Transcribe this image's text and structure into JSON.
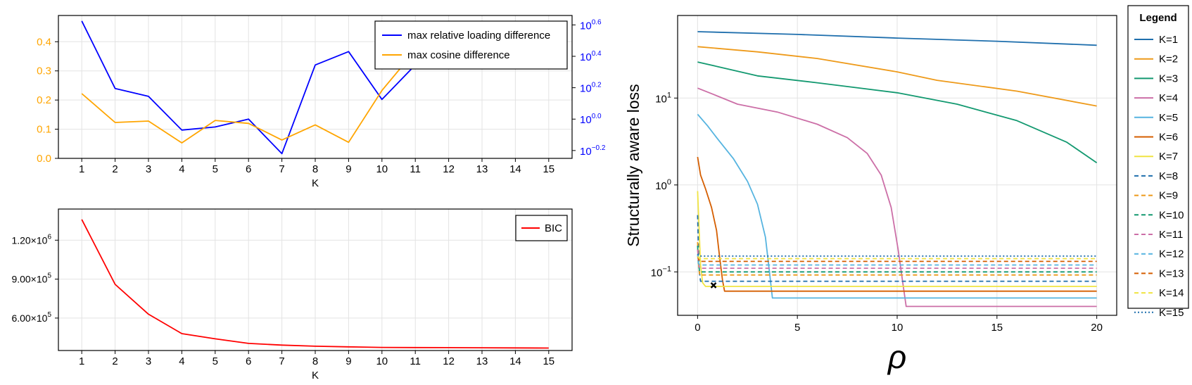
{
  "chart_data": [
    {
      "type": "line",
      "xlabel": "K",
      "x": [
        1,
        2,
        3,
        4,
        5,
        6,
        7,
        8,
        9,
        10,
        11,
        12,
        13,
        14,
        15
      ],
      "xlim": [
        0.3,
        15.7
      ],
      "left_axis": {
        "ylim": [
          0,
          0.49
        ],
        "ticks": [
          0.0,
          0.1,
          0.2,
          0.3,
          0.4
        ],
        "tick_labels": [
          "0.0",
          "0.1",
          "0.2",
          "0.3",
          "0.4"
        ],
        "color": "#ffa500"
      },
      "right_axis": {
        "scale": "log10",
        "ylim_exponent": [
          -0.25,
          0.66
        ],
        "ticks_exponent": [
          -0.2,
          0.0,
          0.2,
          0.4,
          0.6
        ],
        "tick_base": "10",
        "tick_exponents": [
          "−0.2",
          "0.0",
          "0.2",
          "0.4",
          "0.6"
        ],
        "color": "#0000ff"
      },
      "grid": true,
      "legend": {
        "placement": "top-right",
        "entries": [
          "max relative loading difference",
          "max cosine difference"
        ]
      },
      "series": [
        {
          "name": "max relative loading difference",
          "axis": "right",
          "color": "#0000ff",
          "log10_values": [
            0.625,
            0.195,
            0.145,
            -0.07,
            -0.05,
            0.0,
            -0.22,
            0.345,
            0.43,
            0.125,
            0.345,
            null,
            null,
            null,
            null
          ]
        },
        {
          "name": "max cosine difference",
          "axis": "left",
          "color": "#ffa500",
          "values": [
            0.222,
            0.123,
            0.128,
            0.053,
            0.13,
            0.12,
            0.063,
            0.115,
            0.055,
            0.233,
            0.37,
            null,
            null,
            null,
            null
          ]
        }
      ]
    },
    {
      "type": "line",
      "xlabel": "K",
      "x": [
        1,
        2,
        3,
        4,
        5,
        6,
        7,
        8,
        9,
        10,
        11,
        12,
        13,
        14,
        15
      ],
      "xlim": [
        0.3,
        15.7
      ],
      "ylim": [
        350000,
        1440000
      ],
      "y_ticks": [
        600000,
        900000,
        1200000
      ],
      "y_tick_mantissas": [
        "6.00",
        "9.00",
        "1.20"
      ],
      "y_tick_exponent": "5",
      "y_tick_exponent_big": "6",
      "grid": true,
      "legend": {
        "placement": "top-right",
        "entries": [
          "BIC"
        ]
      },
      "series": [
        {
          "name": "BIC",
          "color": "#ff0000",
          "values": [
            1360000,
            860000,
            630000,
            480000,
            440000,
            405000,
            392000,
            383000,
            378000,
            374000,
            373000,
            372000,
            371000,
            370000,
            369000
          ]
        }
      ]
    },
    {
      "type": "line",
      "xlabel": "ρ",
      "ylabel": "Structurally aware loss",
      "y_scale": "log10",
      "xlim": [
        -1.0,
        21.0
      ],
      "xticks": [
        0,
        5,
        10,
        15,
        20
      ],
      "log10_ylim": [
        -1.5,
        1.95
      ],
      "y_ticks_exponent": [
        -1,
        0,
        1
      ],
      "y_tick_base": "10",
      "y_tick_exponents": [
        "−1",
        "0",
        "1"
      ],
      "grid": true,
      "legend": {
        "title": "Legend",
        "placement": "right-outside"
      },
      "series": [
        {
          "name": "K=1",
          "color": "#1f6fad",
          "dash": "solid",
          "points": [
            [
              0,
              58
            ],
            [
              5,
              54
            ],
            [
              10,
              49
            ],
            [
              15,
              45
            ],
            [
              20,
              40.5
            ]
          ]
        },
        {
          "name": "K=2",
          "color": "#ee9a1a",
          "dash": "solid",
          "points": [
            [
              0,
              39
            ],
            [
              3,
              34
            ],
            [
              6,
              28.5
            ],
            [
              10,
              20
            ],
            [
              12,
              16
            ],
            [
              16,
              12
            ],
            [
              20,
              8.1
            ]
          ]
        },
        {
          "name": "K=3",
          "color": "#139970",
          "dash": "solid",
          "points": [
            [
              0,
              26
            ],
            [
              1,
              23
            ],
            [
              3,
              18
            ],
            [
              6,
              15
            ],
            [
              10,
              11.5
            ],
            [
              13,
              8.5
            ],
            [
              16,
              5.5
            ],
            [
              18.5,
              3.1
            ],
            [
              20,
              1.8
            ]
          ]
        },
        {
          "name": "K=4",
          "color": "#cc6fa7",
          "dash": "solid",
          "points": [
            [
              0,
              13
            ],
            [
              0.8,
              11
            ],
            [
              2,
              8.5
            ],
            [
              4,
              6.9
            ],
            [
              6,
              5
            ],
            [
              7.5,
              3.5
            ],
            [
              8.5,
              2.3
            ],
            [
              9.2,
              1.3
            ],
            [
              9.7,
              0.55
            ],
            [
              10.05,
              0.18
            ],
            [
              10.3,
              0.07
            ],
            [
              10.45,
              0.04
            ],
            [
              20,
              0.04
            ]
          ]
        },
        {
          "name": "K=5",
          "color": "#56b4e0",
          "dash": "solid",
          "points": [
            [
              0,
              6.5
            ],
            [
              0.5,
              4.8
            ],
            [
              1,
              3.4
            ],
            [
              1.8,
              2.0
            ],
            [
              2.5,
              1.1
            ],
            [
              3.0,
              0.6
            ],
            [
              3.4,
              0.25
            ],
            [
              3.6,
              0.1
            ],
            [
              3.75,
              0.05
            ],
            [
              20,
              0.05
            ]
          ]
        },
        {
          "name": "K=6",
          "color": "#d55e00",
          "dash": "solid",
          "points": [
            [
              0,
              2.1
            ],
            [
              0.15,
              1.3
            ],
            [
              0.4,
              0.9
            ],
            [
              0.7,
              0.55
            ],
            [
              0.95,
              0.3
            ],
            [
              1.1,
              0.15
            ],
            [
              1.25,
              0.08
            ],
            [
              1.35,
              0.06
            ],
            [
              20,
              0.06
            ]
          ]
        },
        {
          "name": "K=7",
          "color": "#f0e442",
          "dash": "solid",
          "points": [
            [
              0,
              0.85
            ],
            [
              0.08,
              0.3
            ],
            [
              0.15,
              0.12
            ],
            [
              0.25,
              0.075
            ],
            [
              0.4,
              0.068
            ],
            [
              20,
              0.068
            ]
          ]
        },
        {
          "name": "K=8",
          "color": "#1f6fad",
          "dash": "dash",
          "points": [
            [
              0,
              0.45
            ],
            [
              0.04,
              0.2
            ],
            [
              0.09,
              0.1
            ],
            [
              0.15,
              0.078
            ],
            [
              20,
              0.078
            ]
          ]
        },
        {
          "name": "K=9",
          "color": "#ee9a1a",
          "dash": "dash",
          "points": [
            [
              0,
              0.22
            ],
            [
              0.04,
              0.13
            ],
            [
              0.1,
              0.092
            ],
            [
              20,
              0.092
            ]
          ]
        },
        {
          "name": "K=10",
          "color": "#139970",
          "dash": "dash",
          "points": [
            [
              0,
              0.2
            ],
            [
              0.04,
              0.13
            ],
            [
              0.1,
              0.1
            ],
            [
              20,
              0.1
            ]
          ]
        },
        {
          "name": "K=11",
          "color": "#cc6fa7",
          "dash": "dash",
          "points": [
            [
              0,
              0.18
            ],
            [
              0.05,
              0.13
            ],
            [
              0.1,
              0.11
            ],
            [
              20,
              0.11
            ]
          ]
        },
        {
          "name": "K=12",
          "color": "#56b4e0",
          "dash": "dash",
          "points": [
            [
              0,
              0.16
            ],
            [
              0.05,
              0.125
            ],
            [
              0.1,
              0.12
            ],
            [
              20,
              0.12
            ]
          ]
        },
        {
          "name": "K=13",
          "color": "#d55e00",
          "dash": "dash",
          "points": [
            [
              0,
              0.15
            ],
            [
              0.1,
              0.132
            ],
            [
              20,
              0.132
            ]
          ]
        },
        {
          "name": "K=14",
          "color": "#f0e442",
          "dash": "dash",
          "points": [
            [
              0,
              0.15
            ],
            [
              0.1,
              0.142
            ],
            [
              20,
              0.142
            ]
          ]
        },
        {
          "name": "K=15",
          "color": "#1f6fad",
          "dash": "dot",
          "points": [
            [
              0,
              0.16
            ],
            [
              0.1,
              0.152
            ],
            [
              20,
              0.152
            ]
          ]
        }
      ],
      "marker": {
        "symbol": "x",
        "x": 0.8,
        "y": 0.07,
        "color": "#000000"
      }
    }
  ]
}
